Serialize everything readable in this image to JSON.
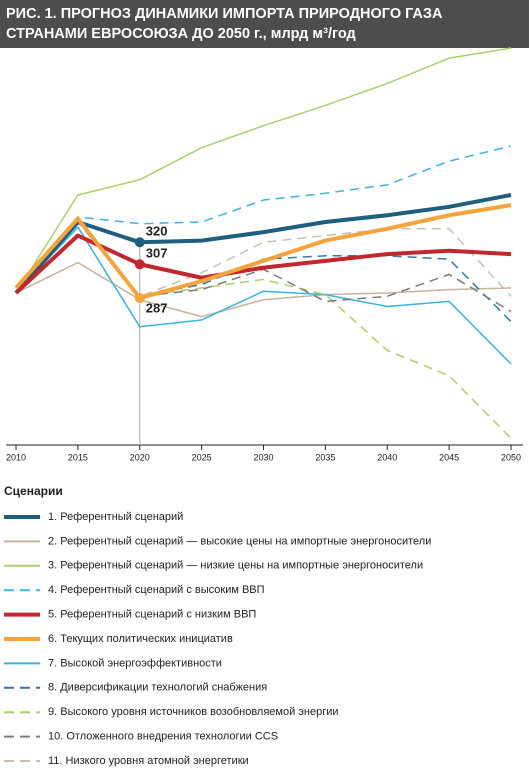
{
  "chart_data": {
    "type": "line",
    "title": [
      "РИС. 1. ПРОГНОЗ ДИНАМИКИ ИМПОРТА ПРИРОДНОГО ГАЗА",
      "СТРАНАМИ ЕВРОСОЮЗА ДО 2050 г., млрд м³/год"
    ],
    "legend_title": "Сценарии",
    "x": [
      2010,
      2015,
      2020,
      2025,
      2030,
      2035,
      2040,
      2045,
      2050
    ],
    "xlim": [
      2010,
      2050
    ],
    "xticks": [
      2010,
      2015,
      2020,
      2025,
      2030,
      2035,
      2040,
      2045,
      2050
    ],
    "ylim": [
      200,
      435
    ],
    "series": [
      {
        "name": "1. Референтный сценарий",
        "color": "#1d5f7c",
        "style": "thick",
        "values": [
          290,
          332,
          320,
          321,
          326,
          332,
          336,
          341,
          348
        ]
      },
      {
        "name": "2. Референтный сценарий — высокие цены на импортные энергоносители",
        "color": "#c6b49e",
        "style": "solid",
        "values": [
          290,
          308,
          286,
          276,
          286,
          289,
          290,
          292,
          293
        ]
      },
      {
        "name": "3. Референтный сценарий — низкие цены на импортные энергоносители",
        "color": "#a9d06c",
        "style": "solid",
        "values": [
          290,
          348,
          357,
          376,
          389,
          401,
          414,
          429,
          435
        ]
      },
      {
        "name": "4. Референтный сценарий с высоким ВВП",
        "color": "#3db3e3",
        "style": "dashed",
        "values": [
          290,
          335,
          331,
          332,
          345,
          349,
          354,
          368,
          377
        ]
      },
      {
        "name": "5. Референтный сценарий с низким ВВП",
        "color": "#c1272d",
        "style": "thick",
        "values": [
          290,
          324,
          307,
          299,
          305,
          309,
          313,
          315,
          313
        ]
      },
      {
        "name": "6. Текущих политических инициатив",
        "color": "#f6a33c",
        "style": "thick",
        "values": [
          293,
          334,
          287,
          297,
          309,
          321,
          328,
          336,
          342
        ]
      },
      {
        "name": "7. Высокой энергоэффективности",
        "color": "#38b3dc",
        "style": "solid",
        "values": [
          290,
          329,
          270,
          274,
          291,
          289,
          282,
          285,
          248
        ]
      },
      {
        "name": "8. Диверсификации технологий снабжения",
        "color": "#2f7ca2",
        "style": "dashed",
        "values": [
          290,
          332,
          288,
          295,
          310,
          312,
          312,
          310,
          273
        ]
      },
      {
        "name": "9. Высокого уровня источников возобновляемой энергии",
        "color": "#a9d06c",
        "style": "dashed",
        "values": [
          290,
          335,
          288,
          293,
          298,
          289,
          256,
          241,
          204
        ]
      },
      {
        "name": "10. Отложенного внедрения технологии CCS",
        "color": "#7a7a7a",
        "style": "dashed",
        "values": [
          290,
          332,
          288,
          292,
          304,
          285,
          288,
          301,
          279
        ]
      },
      {
        "name": "11. Низкого уровня атомной энергетики",
        "color": "#cbbfb1",
        "style": "dashed",
        "values": [
          290,
          332,
          288,
          302,
          320,
          324,
          328,
          328,
          288
        ]
      }
    ],
    "labeled_points": [
      "chart_data.series.0.values.2",
      "chart_data.series.4.values.2",
      "chart_data.series.5.values.2"
    ]
  }
}
